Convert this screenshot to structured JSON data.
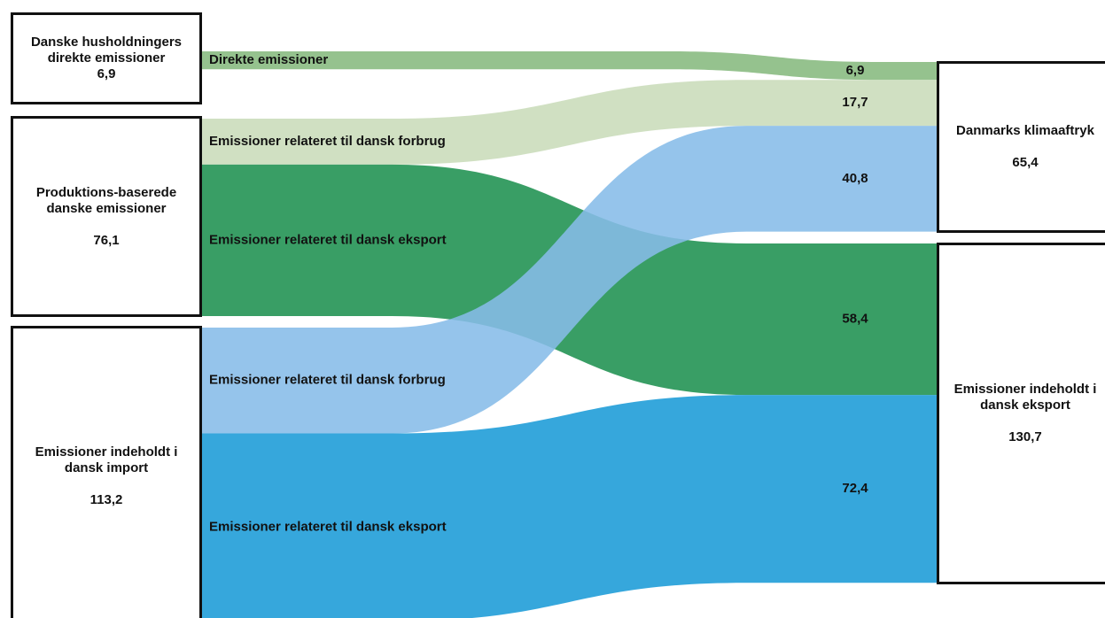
{
  "chart_data": {
    "type": "sankey",
    "nodes": [
      "Danske husholdningers direkte emissioner",
      "Produktions-baserede danske emissioner",
      "Emissioner indeholdt i dansk import",
      "Danmarks klimaaftryk",
      "Emissioner indeholdt i dansk eksport"
    ],
    "node_values": [
      6.9,
      76.1,
      113.2,
      65.4,
      130.7
    ],
    "node_value_labels": [
      "6,9",
      "76,1",
      "113,2",
      "65,4",
      "130,7"
    ],
    "links": {
      "source": [
        0,
        1,
        1,
        2,
        2
      ],
      "target": [
        3,
        3,
        4,
        3,
        4
      ],
      "names": [
        "Direkte emissioner",
        "Emissioner relateret til dansk forbrug",
        "Emissioner relateret til dansk eksport",
        "Emissioner relateret til dansk forbrug",
        "Emissioner relateret til dansk eksport"
      ],
      "values": [
        6.9,
        17.7,
        58.4,
        40.8,
        72.4
      ],
      "value_labels": [
        "6,9",
        "17,7",
        "58,4",
        "40,8",
        "72,4"
      ],
      "colors": [
        "#86b97e",
        "#c9dcb9",
        "#1e9150",
        "#86bce8",
        "#1a9bd7"
      ]
    }
  }
}
